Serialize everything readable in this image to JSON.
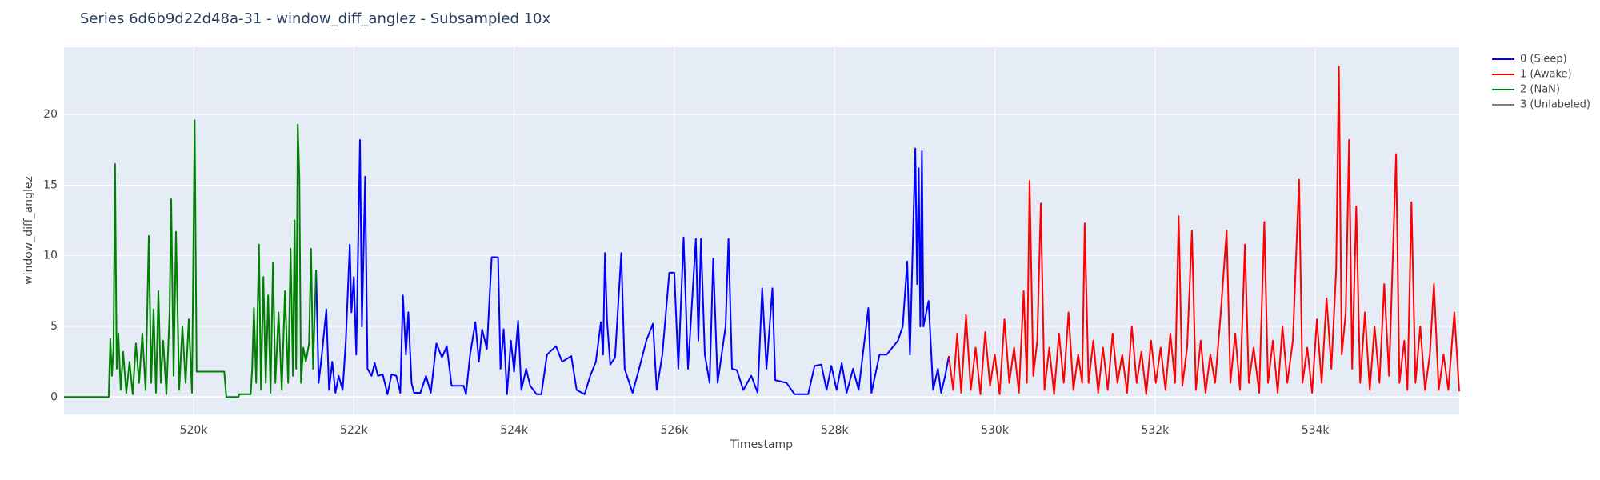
{
  "chart_data": {
    "type": "line",
    "title": "Series 6d6b9d22d48a-31 - window_diff_anglez - Subsampled 10x",
    "x_label": "Timestamp",
    "y_label": "window_diff_anglez",
    "xlim": [
      518382,
      535796
    ],
    "ylim": [
      -1.23,
      24.77
    ],
    "xticks": [
      {
        "value": 520000,
        "label": "520k"
      },
      {
        "value": 522000,
        "label": "522k"
      },
      {
        "value": 524000,
        "label": "524k"
      },
      {
        "value": 526000,
        "label": "526k"
      },
      {
        "value": 528000,
        "label": "528k"
      },
      {
        "value": 530000,
        "label": "530k"
      },
      {
        "value": 532000,
        "label": "532k"
      },
      {
        "value": 534000,
        "label": "534k"
      }
    ],
    "yticks": [
      0,
      5,
      10,
      15,
      20
    ],
    "grid": true,
    "legend": "outside-right",
    "series": [
      {
        "name": "0 (Sleep)",
        "color": "#0000ff",
        "x": [
          521528,
          521560,
          521600,
          521656,
          521690,
          521730,
          521770,
          521810,
          521860,
          521900,
          521949,
          521970,
          522000,
          522030,
          522076,
          522100,
          522140,
          522170,
          522220,
          522260,
          522300,
          522360,
          522420,
          522470,
          522530,
          522580,
          522612,
          522650,
          522680,
          522720,
          522750,
          522830,
          522900,
          522960,
          523030,
          523100,
          523160,
          523220,
          523370,
          523400,
          523450,
          523516,
          523560,
          523600,
          523660,
          523720,
          523800,
          523830,
          523870,
          523911,
          523960,
          524000,
          524050,
          524090,
          524150,
          524200,
          524280,
          524340,
          524410,
          524523,
          524600,
          524714,
          524780,
          524879,
          524950,
          525020,
          525083,
          525110,
          525134,
          525160,
          525200,
          525260,
          525338,
          525380,
          525478,
          525560,
          525650,
          525733,
          525780,
          525850,
          525937,
          526000,
          526050,
          526115,
          526170,
          526268,
          526300,
          526332,
          526380,
          526440,
          526485,
          526540,
          526640,
          526676,
          526720,
          526780,
          526860,
          526960,
          527040,
          527096,
          527150,
          527224,
          527260,
          527400,
          527500,
          527670,
          527750,
          527835,
          527900,
          527960,
          528026,
          528090,
          528150,
          528230,
          528300,
          528421,
          528460,
          528561,
          528650,
          528791,
          528850,
          528906,
          528940,
          529007,
          529030,
          529050,
          529070,
          529090,
          529109,
          529173,
          529230,
          529290,
          529330,
          529380,
          529427
        ],
        "values": [
          9,
          1,
          3,
          6.2,
          0.5,
          2.5,
          0.3,
          1.5,
          0.5,
          4,
          10.8,
          6,
          8.5,
          3,
          18.2,
          5,
          15.6,
          2,
          1.5,
          2.4,
          1.5,
          1.6,
          0.2,
          1.6,
          1.5,
          0.3,
          7.2,
          3,
          6,
          1,
          0.3,
          0.3,
          1.5,
          0.3,
          3.8,
          2.8,
          3.6,
          0.8,
          0.8,
          0.2,
          3,
          5.3,
          2.5,
          4.8,
          3.4,
          9.9,
          9.9,
          2,
          4.8,
          0.2,
          4,
          1.8,
          5.4,
          0.5,
          2,
          0.8,
          0.2,
          0.2,
          3,
          3.6,
          2.5,
          2.9,
          0.5,
          0.2,
          1.5,
          2.5,
          5.3,
          3,
          10.2,
          5.4,
          2.3,
          2.8,
          10.2,
          2,
          0.3,
          2,
          4,
          5.2,
          0.5,
          3,
          8.8,
          8.8,
          2,
          11.3,
          2,
          11.2,
          4,
          11.2,
          3,
          1,
          9.8,
          1,
          5,
          11.2,
          2,
          1.9,
          0.5,
          1.5,
          0.3,
          7.7,
          2,
          7.7,
          1.2,
          1,
          0.2,
          0.2,
          2.2,
          2.3,
          0.5,
          2.2,
          0.5,
          2.4,
          0.3,
          2,
          0.5,
          6.3,
          0.3,
          3,
          3,
          4,
          5,
          9.6,
          3,
          17.6,
          8,
          16.2,
          5,
          17.4,
          5,
          6.8,
          0.5,
          2,
          0.3,
          1.5,
          2.9
        ]
      },
      {
        "name": "1 (Awake)",
        "color": "#ff0000",
        "x": [
          529427,
          529480,
          529530,
          529580,
          529640,
          529700,
          529760,
          529820,
          529880,
          529940,
          530000,
          530060,
          530120,
          530180,
          530240,
          530300,
          530360,
          530400,
          530434,
          530480,
          530530,
          530574,
          530620,
          530680,
          530740,
          530800,
          530860,
          530920,
          530980,
          531040,
          531090,
          531122,
          531170,
          531230,
          531290,
          531350,
          531410,
          531470,
          531530,
          531590,
          531650,
          531710,
          531770,
          531830,
          531890,
          531950,
          532010,
          532070,
          532130,
          532190,
          532250,
          532294,
          532340,
          532400,
          532460,
          532510,
          532570,
          532630,
          532690,
          532750,
          532820,
          532893,
          532940,
          533000,
          533060,
          533122,
          533170,
          533230,
          533300,
          533364,
          533410,
          533470,
          533530,
          533590,
          533650,
          533720,
          533797,
          533840,
          533900,
          533960,
          534020,
          534080,
          534140,
          534200,
          534260,
          534294,
          534330,
          534380,
          534421,
          534460,
          534511,
          534560,
          534620,
          534680,
          534740,
          534800,
          534860,
          534920,
          535008,
          535050,
          535110,
          535150,
          535200,
          535250,
          535310,
          535370,
          535430,
          535480,
          535540,
          535600,
          535660,
          535735,
          535796
        ],
        "values": [
          2.9,
          0.5,
          4.5,
          0.3,
          5.8,
          0.5,
          3.5,
          0.2,
          4.6,
          0.8,
          3,
          0.2,
          5.5,
          1,
          3.5,
          0.3,
          7.5,
          1,
          15.3,
          1.5,
          4,
          13.7,
          0.5,
          3.5,
          0.2,
          4.5,
          1,
          6,
          0.5,
          3,
          1,
          12.3,
          1,
          4,
          0.3,
          3.5,
          0.5,
          4.5,
          1,
          3,
          0.3,
          5,
          1,
          3.2,
          0.2,
          4,
          1,
          3.5,
          0.5,
          4.5,
          1,
          12.8,
          0.8,
          3.5,
          11.8,
          0.5,
          4,
          0.3,
          3,
          1,
          6,
          11.8,
          1,
          4.5,
          0.5,
          10.8,
          1,
          3.5,
          0.3,
          12.4,
          1,
          4,
          0.3,
          5,
          1,
          4,
          15.4,
          1,
          3.5,
          0.3,
          5.5,
          1,
          7,
          2,
          9,
          23.4,
          3,
          6,
          18.2,
          2,
          13.5,
          1,
          6,
          0.5,
          5,
          1,
          8,
          1.5,
          17.2,
          1,
          4,
          0.5,
          13.8,
          1,
          5,
          0.5,
          3,
          8,
          0.5,
          3,
          0.5,
          6,
          0.4
        ]
      },
      {
        "name": "2 (NaN)",
        "color": "#008000",
        "x": [
          518382,
          518940,
          518960,
          518980,
          519000,
          519019,
          519040,
          519060,
          519090,
          519120,
          519160,
          519200,
          519240,
          519280,
          519320,
          519360,
          519400,
          519440,
          519470,
          519500,
          519530,
          519560,
          519590,
          519620,
          519660,
          519700,
          519720,
          519750,
          519780,
          519820,
          519860,
          519900,
          519940,
          519980,
          520013,
          520038,
          520200,
          520382,
          520408,
          520560,
          520570,
          520713,
          520730,
          520752,
          520780,
          520815,
          520840,
          520870,
          520900,
          520930,
          520960,
          520990,
          521020,
          521060,
          521100,
          521140,
          521180,
          521210,
          521240,
          521260,
          521280,
          521300,
          521320,
          521340,
          521370,
          521400,
          521440,
          521465,
          521490,
          521528
        ],
        "values": [
          0,
          0,
          4.1,
          1.5,
          3.5,
          16.5,
          2,
          4.5,
          0.5,
          3.2,
          0.3,
          2.5,
          0.2,
          3.8,
          1,
          4.5,
          0.5,
          11.4,
          1,
          6.2,
          0.3,
          7.5,
          1,
          4,
          0.2,
          6,
          14,
          1.5,
          11.7,
          0.5,
          5,
          1,
          5.5,
          0.3,
          19.6,
          1.8,
          1.8,
          1.8,
          0,
          0,
          0.2,
          0.2,
          2,
          6.3,
          1,
          10.8,
          0.5,
          8.5,
          1,
          7.2,
          0.3,
          9.5,
          1,
          6,
          0.5,
          7.5,
          1,
          10.5,
          1.5,
          12.5,
          2,
          19.3,
          15.5,
          1,
          3.5,
          2.5,
          3.8,
          10.5,
          2,
          9
        ]
      },
      {
        "name": "3 (Unlabeled)",
        "color": "#808080",
        "x": [],
        "values": []
      }
    ]
  }
}
